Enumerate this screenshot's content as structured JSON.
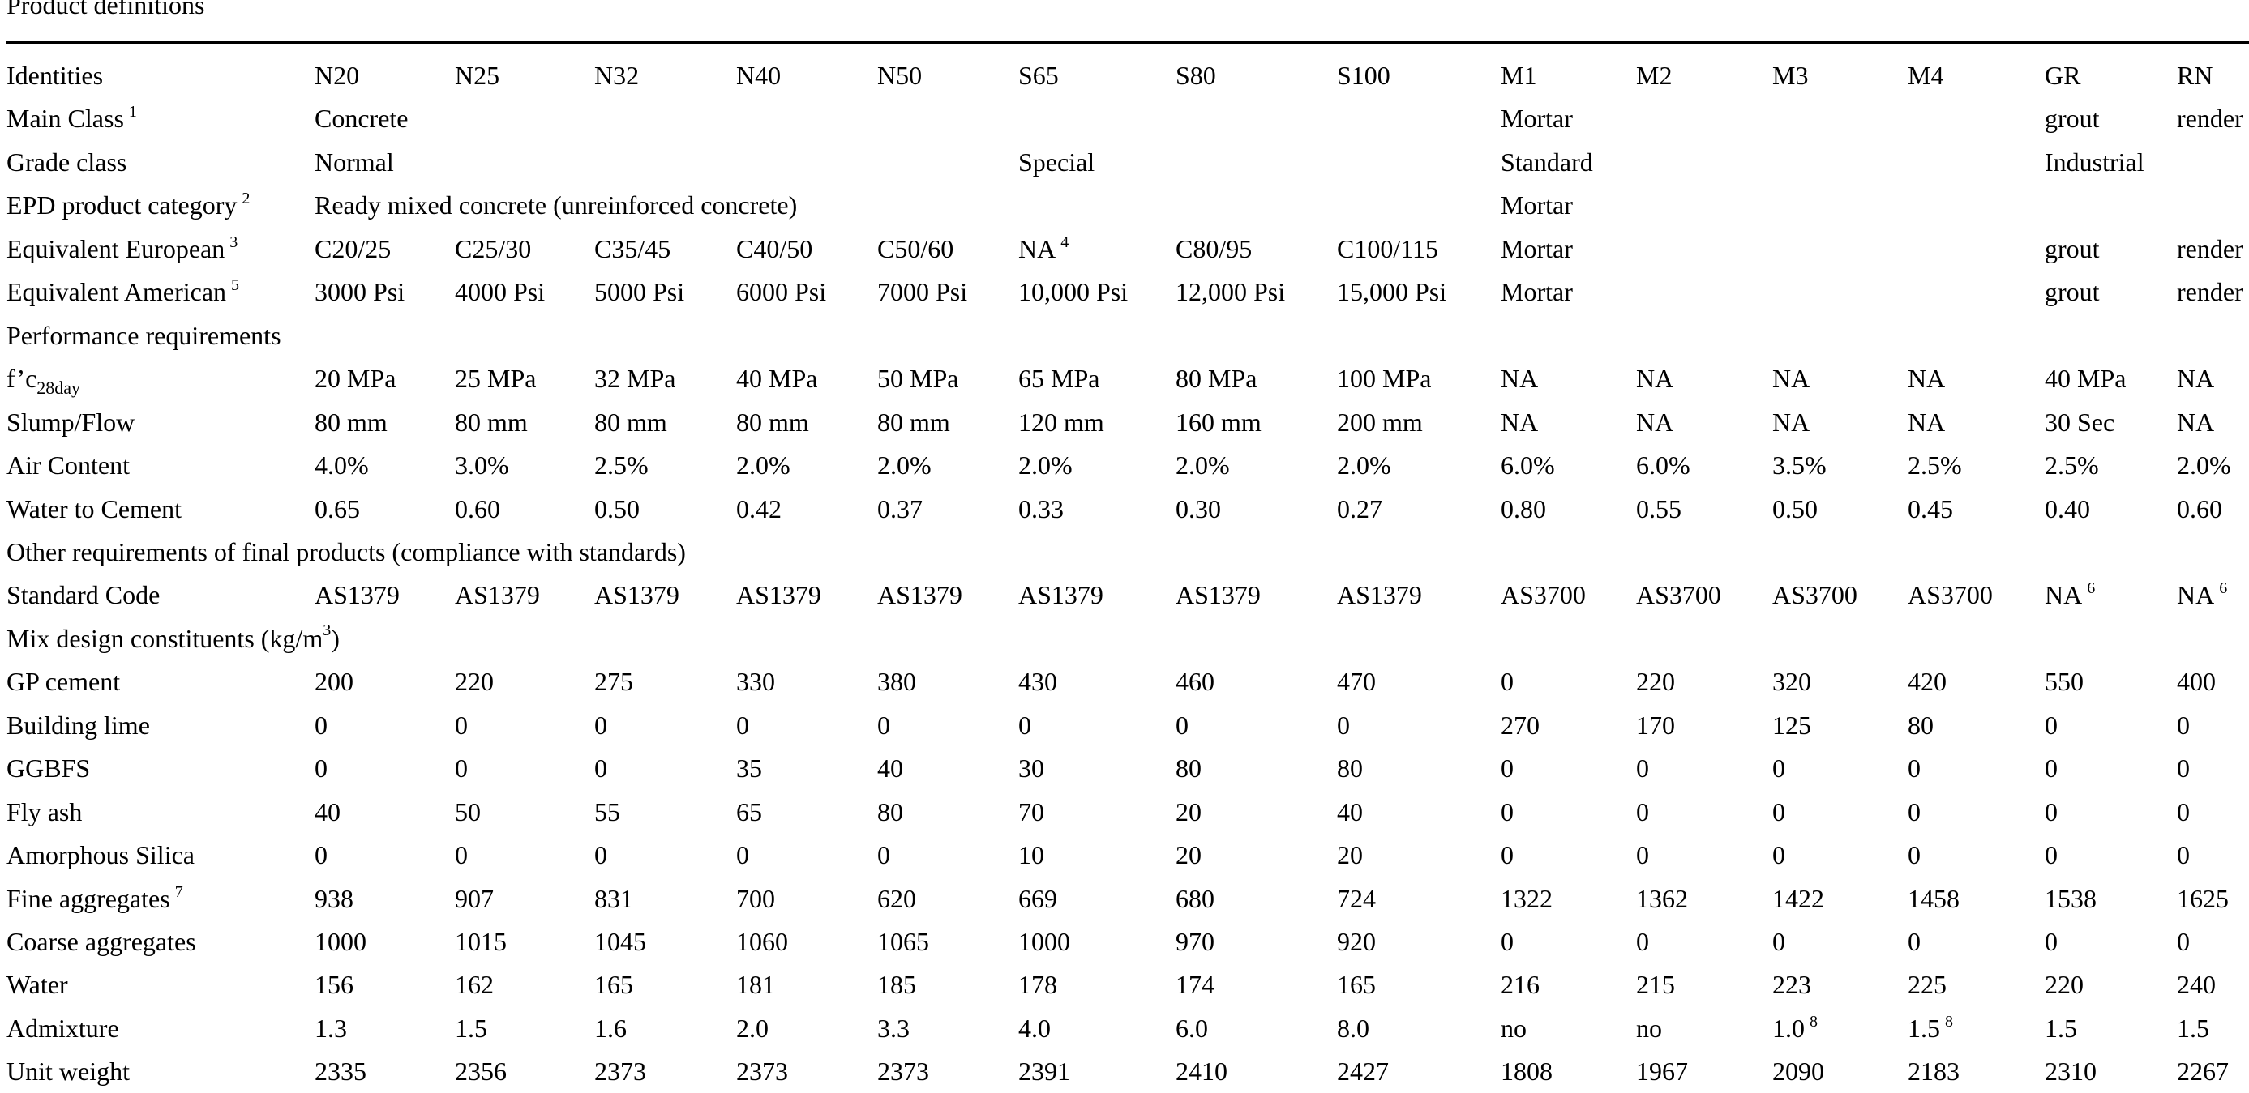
{
  "title": "Product definitions",
  "columns": [
    "N20",
    "N25",
    "N32",
    "N40",
    "N50",
    "S65",
    "S80",
    "S100",
    "M1",
    "M2",
    "M3",
    "M4",
    "GR",
    "RN"
  ],
  "rows": [
    {
      "label": "Identities",
      "cells": [
        "N20",
        "N25",
        "N32",
        "N40",
        "N50",
        "S65",
        "S80",
        "S100",
        "M1",
        "M2",
        "M3",
        "M4",
        "GR",
        "RN"
      ]
    },
    {
      "label": "Main Class",
      "label_sup": "1",
      "cells": [
        "Concrete",
        "",
        "",
        "",
        "",
        "",
        "",
        "",
        "Mortar",
        "",
        "",
        "",
        "grout",
        "render"
      ]
    },
    {
      "label": "Grade class",
      "cells": [
        "Normal",
        "",
        "",
        "",
        "",
        "Special",
        "",
        "",
        "Standard",
        "",
        "",
        "",
        "Industrial",
        ""
      ]
    },
    {
      "label": "EPD product category",
      "label_sup": "2",
      "cells": [
        "Ready mixed concrete (unreinforced concrete)",
        "",
        "",
        "",
        "",
        "",
        "",
        "",
        "Mortar",
        "",
        "",
        "",
        "",
        ""
      ]
    },
    {
      "label": "Equivalent European",
      "label_sup": "3",
      "cells": [
        "C20/25",
        "C25/30",
        "C35/45",
        "C40/50",
        "C50/60",
        "NA",
        "C80/95",
        "C100/115",
        "Mortar",
        "",
        "",
        "",
        "grout",
        "render"
      ],
      "cell_sups": {
        "5": "4"
      }
    },
    {
      "label": "Equivalent American",
      "label_sup": "5",
      "cells": [
        "3000 Psi",
        "4000 Psi",
        "5000 Psi",
        "6000 Psi",
        "7000 Psi",
        "10,000 Psi",
        "12,000 Psi",
        "15,000 Psi",
        "Mortar",
        "",
        "",
        "",
        "grout",
        "render"
      ]
    },
    {
      "section": "Performance requirements"
    },
    {
      "label": "f’c",
      "label_sub": "28day",
      "cells": [
        "20 MPa",
        "25 MPa",
        "32 MPa",
        "40 MPa",
        "50 MPa",
        "65 MPa",
        "80 MPa",
        "100 MPa",
        "NA",
        "NA",
        "NA",
        "NA",
        "40 MPa",
        "NA"
      ]
    },
    {
      "label": "Slump/Flow",
      "cells": [
        "80 mm",
        "80 mm",
        "80 mm",
        "80 mm",
        "80 mm",
        "120 mm",
        "160 mm",
        "200 mm",
        "NA",
        "NA",
        "NA",
        "NA",
        "30 Sec",
        "NA"
      ]
    },
    {
      "label": "Air Content",
      "cells": [
        "4.0%",
        "3.0%",
        "2.5%",
        "2.0%",
        "2.0%",
        "2.0%",
        "2.0%",
        "2.0%",
        "6.0%",
        "6.0%",
        "3.5%",
        "2.5%",
        "2.5%",
        "2.0%"
      ]
    },
    {
      "label": "Water to Cement",
      "cells": [
        "0.65",
        "0.60",
        "0.50",
        "0.42",
        "0.37",
        "0.33",
        "0.30",
        "0.27",
        "0.80",
        "0.55",
        "0.50",
        "0.45",
        "0.40",
        "0.60"
      ]
    },
    {
      "section": "Other requirements of final products (compliance with standards)"
    },
    {
      "label": "Standard Code",
      "cells": [
        "AS1379",
        "AS1379",
        "AS1379",
        "AS1379",
        "AS1379",
        "AS1379",
        "AS1379",
        "AS1379",
        "AS3700",
        "AS3700",
        "AS3700",
        "AS3700",
        "NA",
        "NA"
      ],
      "cell_sups": {
        "12": "6",
        "13": "6"
      }
    },
    {
      "section": "Mix design constituents (kg/m",
      "section_sup": "3",
      "section_suffix": ")"
    },
    {
      "label": "GP cement",
      "cells": [
        "200",
        "220",
        "275",
        "330",
        "380",
        "430",
        "460",
        "470",
        "0",
        "220",
        "320",
        "420",
        "550",
        "400"
      ]
    },
    {
      "label": "Building lime",
      "cells": [
        "0",
        "0",
        "0",
        "0",
        "0",
        "0",
        "0",
        "0",
        "270",
        "170",
        "125",
        "80",
        "0",
        "0"
      ]
    },
    {
      "label": "GGBFS",
      "cells": [
        "0",
        "0",
        "0",
        "35",
        "40",
        "30",
        "80",
        "80",
        "0",
        "0",
        "0",
        "0",
        "0",
        "0"
      ]
    },
    {
      "label": "Fly ash",
      "cells": [
        "40",
        "50",
        "55",
        "65",
        "80",
        "70",
        "20",
        "40",
        "0",
        "0",
        "0",
        "0",
        "0",
        "0"
      ]
    },
    {
      "label": "Amorphous Silica",
      "cells": [
        "0",
        "0",
        "0",
        "0",
        "0",
        "10",
        "20",
        "20",
        "0",
        "0",
        "0",
        "0",
        "0",
        "0"
      ]
    },
    {
      "label": "Fine aggregates",
      "label_sup": "7",
      "cells": [
        "938",
        "907",
        "831",
        "700",
        "620",
        "669",
        "680",
        "724",
        "1322",
        "1362",
        "1422",
        "1458",
        "1538",
        "1625"
      ]
    },
    {
      "label": "Coarse aggregates",
      "cells": [
        "1000",
        "1015",
        "1045",
        "1060",
        "1065",
        "1000",
        "970",
        "920",
        "0",
        "0",
        "0",
        "0",
        "0",
        "0"
      ]
    },
    {
      "label": "Water",
      "cells": [
        "156",
        "162",
        "165",
        "181",
        "185",
        "178",
        "174",
        "165",
        "216",
        "215",
        "223",
        "225",
        "220",
        "240"
      ]
    },
    {
      "label": "Admixture",
      "cells": [
        "1.3",
        "1.5",
        "1.6",
        "2.0",
        "3.3",
        "4.0",
        "6.0",
        "8.0",
        "no",
        "no",
        "1.0",
        "1.5",
        "1.5",
        "1.5"
      ],
      "cell_sups": {
        "10": "8",
        "11": "8"
      }
    },
    {
      "label": "Unit weight",
      "cells": [
        "2335",
        "2356",
        "2373",
        "2373",
        "2373",
        "2391",
        "2410",
        "2427",
        "1808",
        "1967",
        "2090",
        "2183",
        "2310",
        "2267"
      ]
    }
  ]
}
